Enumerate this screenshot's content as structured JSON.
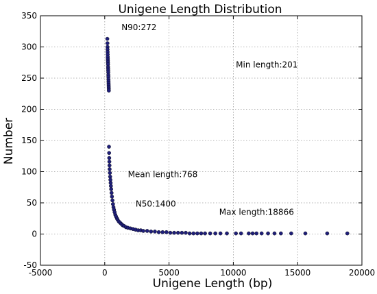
{
  "chart_data": {
    "type": "scatter",
    "title": "Unigene Length Distribution",
    "xlabel": "Unigene Length (bp)",
    "ylabel": "Number",
    "xlim": [
      -5000,
      20000
    ],
    "ylim": [
      -50,
      350
    ],
    "xticks": [
      -5000,
      0,
      5000,
      10000,
      15000,
      20000
    ],
    "yticks": [
      -50,
      0,
      50,
      100,
      150,
      200,
      250,
      300,
      350
    ],
    "grid": true,
    "marker_color": "#1f1f7a",
    "annotations": [
      {
        "text": "N90:272",
        "x": 1300,
        "y": 327
      },
      {
        "text": "Min length:201",
        "x": 10200,
        "y": 267
      },
      {
        "text": "Mean length:768",
        "x": 1800,
        "y": 91
      },
      {
        "text": "N50:1400",
        "x": 2400,
        "y": 44
      },
      {
        "text": "Max length:18866",
        "x": 8900,
        "y": 31
      }
    ],
    "series": [
      {
        "points": [
          [
            201,
            313
          ],
          [
            210,
            306
          ],
          [
            215,
            300
          ],
          [
            220,
            296
          ],
          [
            225,
            292
          ],
          [
            230,
            288
          ],
          [
            235,
            284
          ],
          [
            240,
            281
          ],
          [
            245,
            278
          ],
          [
            250,
            275
          ],
          [
            255,
            272
          ],
          [
            260,
            268
          ],
          [
            265,
            265
          ],
          [
            270,
            262
          ],
          [
            275,
            259
          ],
          [
            280,
            255
          ],
          [
            285,
            252
          ],
          [
            290,
            248
          ],
          [
            295,
            245
          ],
          [
            300,
            242
          ],
          [
            305,
            239
          ],
          [
            310,
            236
          ],
          [
            315,
            233
          ],
          [
            320,
            230
          ],
          [
            330,
            140
          ],
          [
            340,
            130
          ],
          [
            350,
            122
          ],
          [
            360,
            116
          ],
          [
            370,
            110
          ],
          [
            380,
            104
          ],
          [
            400,
            98
          ],
          [
            420,
            92
          ],
          [
            440,
            87
          ],
          [
            460,
            82
          ],
          [
            480,
            77
          ],
          [
            500,
            72
          ],
          [
            530,
            66
          ],
          [
            560,
            60
          ],
          [
            600,
            54
          ],
          [
            640,
            48
          ],
          [
            680,
            43
          ],
          [
            720,
            39
          ],
          [
            768,
            35
          ],
          [
            820,
            31
          ],
          [
            880,
            28
          ],
          [
            950,
            25
          ],
          [
            1000,
            23
          ],
          [
            1100,
            20
          ],
          [
            1200,
            18
          ],
          [
            1300,
            16
          ],
          [
            1400,
            14
          ],
          [
            1500,
            13
          ],
          [
            1650,
            11
          ],
          [
            1800,
            10
          ],
          [
            2000,
            9
          ],
          [
            2200,
            8
          ],
          [
            2400,
            7
          ],
          [
            2600,
            6
          ],
          [
            2800,
            6
          ],
          [
            3000,
            5
          ],
          [
            3300,
            5
          ],
          [
            3600,
            4
          ],
          [
            3900,
            4
          ],
          [
            4200,
            3
          ],
          [
            4500,
            3
          ],
          [
            4800,
            3
          ],
          [
            5100,
            2
          ],
          [
            5400,
            2
          ],
          [
            5700,
            2
          ],
          [
            6000,
            2
          ],
          [
            6300,
            2
          ],
          [
            6600,
            1
          ],
          [
            6900,
            1
          ],
          [
            7200,
            1
          ],
          [
            7500,
            1
          ],
          [
            7800,
            1
          ],
          [
            8200,
            1
          ],
          [
            8600,
            1
          ],
          [
            9000,
            1
          ],
          [
            9500,
            1
          ],
          [
            10200,
            1
          ],
          [
            10600,
            1
          ],
          [
            11200,
            1
          ],
          [
            11500,
            1
          ],
          [
            11800,
            1
          ],
          [
            12200,
            1
          ],
          [
            12700,
            1
          ],
          [
            13200,
            1
          ],
          [
            13700,
            1
          ],
          [
            14500,
            1
          ],
          [
            15600,
            1
          ],
          [
            17300,
            1
          ],
          [
            18866,
            1
          ]
        ]
      }
    ]
  }
}
